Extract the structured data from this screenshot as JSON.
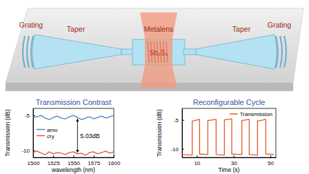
{
  "diagram": {
    "labels": [
      "Grating",
      "Taper",
      "Metalens",
      "Sb₂S₃",
      "Taper",
      "Grating"
    ]
  },
  "chart_data": [
    {
      "type": "line",
      "title": "Transmission Contrast",
      "x_label": "wavelength (nm)",
      "y_label": "Transmission (dB)",
      "x": [
        1500,
        1505,
        1510,
        1515,
        1520,
        1525,
        1530,
        1535,
        1540,
        1545,
        1550,
        1555,
        1560,
        1565,
        1570,
        1575,
        1580,
        1585,
        1590,
        1595,
        1600
      ],
      "series": [
        {
          "name": "amo",
          "color": "#4f7fc0",
          "values": [
            -5.3,
            -5.2,
            -5.0,
            -5.4,
            -5.6,
            -5.3,
            -5.1,
            -5.4,
            -5.5,
            -5.2,
            -5.0,
            -5.3,
            -5.6,
            -5.4,
            -5.2,
            -5.5,
            -5.3,
            -5.1,
            -5.4,
            -5.2,
            -5.0
          ]
        },
        {
          "name": "cry",
          "color": "#e8552e",
          "values": [
            -10.3,
            -10.1,
            -10.4,
            -10.6,
            -10.2,
            -10.5,
            -10.3,
            -10.4,
            -10.6,
            -10.3,
            -10.2,
            -10.5,
            -10.4,
            -10.7,
            -10.3,
            -10.2,
            -10.5,
            -10.3,
            -10.1,
            -10.4,
            -10.2
          ]
        }
      ],
      "xlim": [
        1500,
        1600
      ],
      "xticks": [
        1500,
        1525,
        1550,
        1575,
        1600
      ],
      "ylim": [
        -11,
        -4
      ],
      "yticks": [
        -10,
        -5
      ],
      "legend": "center left",
      "annotations": [
        {
          "text": "5.03dB",
          "x": 1555
        }
      ]
    },
    {
      "type": "line",
      "title": "Reconfigurable Cycle",
      "x_label": "Time (s)",
      "y_label": "Transmission (dB)",
      "x": [
        2,
        7.5,
        7.5,
        11.5,
        11.5,
        16,
        16,
        20.5,
        20.5,
        25,
        25,
        29,
        29,
        34.5,
        34.5,
        38.5,
        38.5,
        43,
        43,
        47.5,
        47.5,
        52
      ],
      "series": [
        {
          "name": "Transmission",
          "color": "#e8552e",
          "values": [
            -11,
            -11.1,
            -5.2,
            -4.9,
            -10.9,
            -11.0,
            -5.1,
            -4.9,
            -11,
            -11.1,
            -5,
            -4.8,
            -10.9,
            -11,
            -5.1,
            -4.9,
            -11,
            -11.1,
            -5.2,
            -4.9,
            -10.9,
            -11
          ]
        }
      ],
      "xlim": [
        2,
        53
      ],
      "xticks": [
        10,
        30,
        50
      ],
      "ylim": [
        -11.5,
        -3
      ],
      "yticks": [
        -10,
        -5
      ],
      "legend": "upper right"
    }
  ]
}
